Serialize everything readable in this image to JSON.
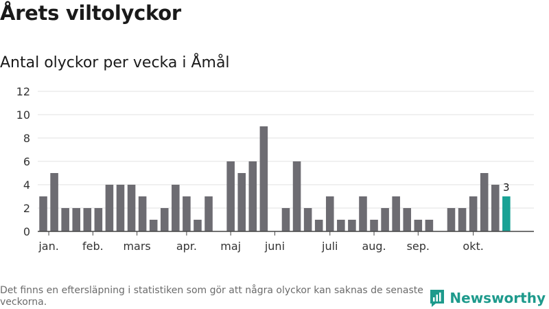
{
  "title": "Årets viltolyckor",
  "subtitle": "Antal olyckor per vecka i Åmål",
  "footnote": "Det finns en eftersläpning i statistiken som gör att några olyckor kan saknas de senaste veckorna.",
  "brand": {
    "name": "Newsworthy",
    "icon": "newsworthy-logo-icon",
    "color": "#1e9a8c"
  },
  "chart_data": {
    "type": "bar",
    "x": [
      2,
      3,
      4,
      5,
      6,
      7,
      8,
      9,
      10,
      11,
      12,
      13,
      14,
      15,
      16,
      17,
      18,
      19,
      20,
      21,
      22,
      23,
      24,
      25,
      26,
      27,
      28,
      29,
      30,
      31,
      32,
      33,
      34,
      35,
      36,
      37,
      38,
      39,
      40,
      41,
      42,
      43,
      44,
      45
    ],
    "values": [
      3,
      5,
      2,
      2,
      2,
      2,
      4,
      4,
      4,
      3,
      1,
      2,
      4,
      3,
      1,
      3,
      0,
      6,
      5,
      6,
      9,
      0,
      2,
      6,
      2,
      1,
      3,
      1,
      1,
      3,
      1,
      2,
      3,
      2,
      1,
      1,
      0,
      2,
      2,
      3,
      5,
      4,
      3,
      null
    ],
    "month_ticks": [
      {
        "label": "jan.",
        "x": 2.5
      },
      {
        "label": "feb.",
        "x": 6.5
      },
      {
        "label": "mars",
        "x": 10.5
      },
      {
        "label": "apr.",
        "x": 15
      },
      {
        "label": "maj",
        "x": 19
      },
      {
        "label": "juni",
        "x": 23
      },
      {
        "label": "juli",
        "x": 28
      },
      {
        "label": "aug.",
        "x": 32
      },
      {
        "label": "sep.",
        "x": 36
      },
      {
        "label": "okt.",
        "x": 41
      }
    ],
    "yticks": [
      0,
      2,
      4,
      6,
      8,
      10,
      12
    ],
    "ylim": [
      0,
      12
    ],
    "xlim": [
      1.5,
      46.5
    ],
    "last_value_label": "3",
    "grid": true,
    "colors": {
      "bar": "#6d6c72",
      "highlight": "#1aa295",
      "grid": "#e2e2e2",
      "axis": "#444444"
    }
  }
}
